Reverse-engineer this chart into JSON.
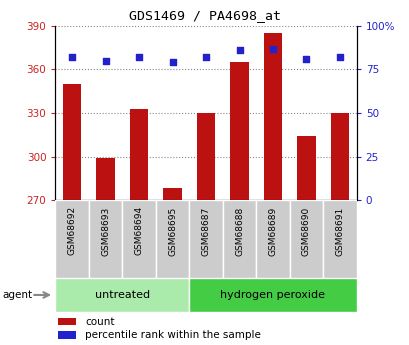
{
  "title": "GDS1469 / PA4698_at",
  "samples": [
    "GSM68692",
    "GSM68693",
    "GSM68694",
    "GSM68695",
    "GSM68687",
    "GSM68688",
    "GSM68689",
    "GSM68690",
    "GSM68691"
  ],
  "counts": [
    350,
    299,
    333,
    278,
    330,
    365,
    385,
    314,
    330
  ],
  "percentile_ranks": [
    82,
    80,
    82,
    79,
    82,
    86,
    87,
    81,
    82
  ],
  "groups": [
    {
      "label": "untreated",
      "start": 0,
      "end": 4
    },
    {
      "label": "hydrogen peroxide",
      "start": 4,
      "end": 9
    }
  ],
  "ylim_left": [
    270,
    390
  ],
  "ylim_right": [
    0,
    100
  ],
  "yticks_left": [
    270,
    300,
    330,
    360,
    390
  ],
  "yticks_right": [
    0,
    25,
    50,
    75,
    100
  ],
  "ytick_labels_right": [
    "0",
    "25",
    "50",
    "75",
    "100%"
  ],
  "bar_color": "#bb1111",
  "dot_color": "#2222cc",
  "background_plot": "#ffffff",
  "background_label": "#cccccc",
  "background_untreated": "#aaeaaa",
  "background_hperoxide": "#44cc44",
  "grid_color": "#888888",
  "left_tick_color": "#cc2222",
  "right_tick_color": "#2222cc",
  "agent_label": "agent",
  "legend_count": "count",
  "legend_percentile": "percentile rank within the sample",
  "bar_width": 0.55
}
